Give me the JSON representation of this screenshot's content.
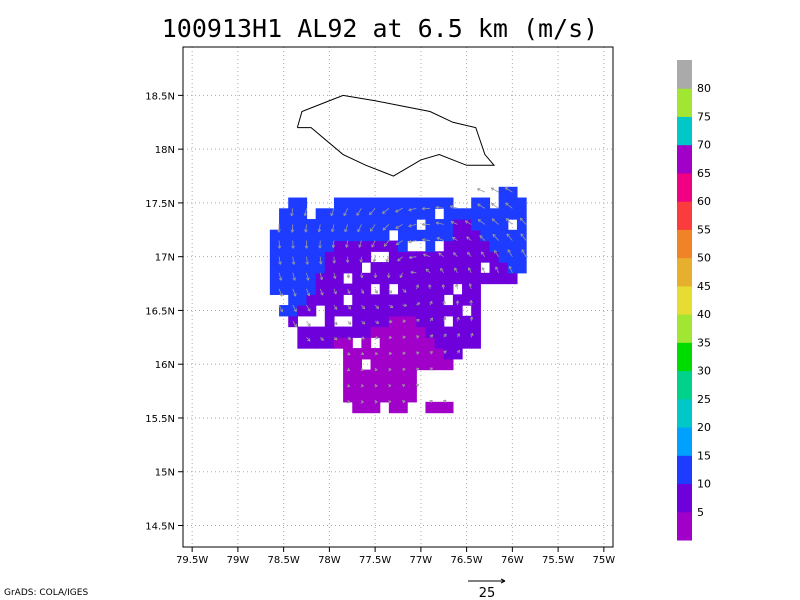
{
  "title": "100913H1 AL92 at 6.5 km (m/s)",
  "credit": "GrADS: COLA/IGES",
  "chart_data": {
    "type": "heatmap",
    "title": "100913H1 AL92 at 6.5 km (m/s)",
    "x_tick_labels": [
      "79.5W",
      "79W",
      "78.5W",
      "78W",
      "77.5W",
      "77W",
      "76.5W",
      "76W",
      "75.5W",
      "75W"
    ],
    "y_tick_labels": [
      "14.5N",
      "15N",
      "15.5N",
      "16N",
      "16.5N",
      "17N",
      "17.5N",
      "18N",
      "18.5N"
    ],
    "xlim": [
      -79.6,
      -74.9
    ],
    "ylim": [
      14.3,
      18.95
    ],
    "grid": true,
    "colorbar": {
      "labels": [
        "5",
        "10",
        "15",
        "20",
        "25",
        "30",
        "35",
        "40",
        "45",
        "50",
        "55",
        "60",
        "65",
        "70",
        "75",
        "80"
      ],
      "bounds": [
        0,
        5,
        10,
        15,
        20,
        25,
        30,
        35,
        40,
        45,
        50,
        55,
        60,
        65,
        70,
        75,
        80,
        85
      ],
      "colors": [
        "#a000c8",
        "#6e00dc",
        "#1e3cff",
        "#00a0ff",
        "#00c8c8",
        "#00d28c",
        "#00dc00",
        "#a0e632",
        "#e6dc32",
        "#e6af2d",
        "#f08228",
        "#fa3c3c",
        "#f00082",
        "#a000c8",
        "#00c8c8",
        "#a0e632",
        "#aaaaaa"
      ]
    },
    "vector_reference": {
      "label": "25",
      "value": 25,
      "units": "m/s"
    },
    "coastline": [
      [
        -78.35,
        18.2
      ],
      [
        -78.3,
        18.35
      ],
      [
        -78.0,
        18.45
      ],
      [
        -77.85,
        18.5
      ],
      [
        -77.5,
        18.45
      ],
      [
        -77.2,
        18.4
      ],
      [
        -76.9,
        18.35
      ],
      [
        -76.65,
        18.25
      ],
      [
        -76.4,
        18.2
      ],
      [
        -76.3,
        17.95
      ],
      [
        -76.2,
        17.85
      ],
      [
        -76.5,
        17.85
      ],
      [
        -76.8,
        17.95
      ],
      [
        -77.0,
        17.9
      ],
      [
        -77.3,
        17.75
      ],
      [
        -77.6,
        17.85
      ],
      [
        -77.85,
        17.95
      ],
      [
        -78.2,
        18.2
      ],
      [
        -78.35,
        18.2
      ]
    ],
    "wind_field_cells_note": "speed field sampled on 0.1 degree grid; values in m/s",
    "speed_samples": [
      {
        "lat": 17.55,
        "lon": -77.45,
        "speed": 12
      },
      {
        "lat": 17.5,
        "lon": -77.2,
        "speed": 11
      },
      {
        "lat": 17.3,
        "lon": -76.9,
        "speed": 11
      },
      {
        "lat": 17.3,
        "lon": -76.1,
        "speed": 12
      },
      {
        "lat": 17.0,
        "lon": -78.5,
        "speed": 11
      },
      {
        "lat": 17.0,
        "lon": -76.5,
        "speed": 8
      },
      {
        "lat": 16.7,
        "lon": -77.5,
        "speed": 7
      },
      {
        "lat": 16.5,
        "lon": -76.8,
        "speed": 6
      },
      {
        "lat": 16.2,
        "lon": -77.2,
        "speed": 4
      },
      {
        "lat": 15.8,
        "lon": -77.5,
        "speed": 3
      },
      {
        "lat": 15.6,
        "lon": -76.9,
        "speed": 4
      }
    ]
  }
}
